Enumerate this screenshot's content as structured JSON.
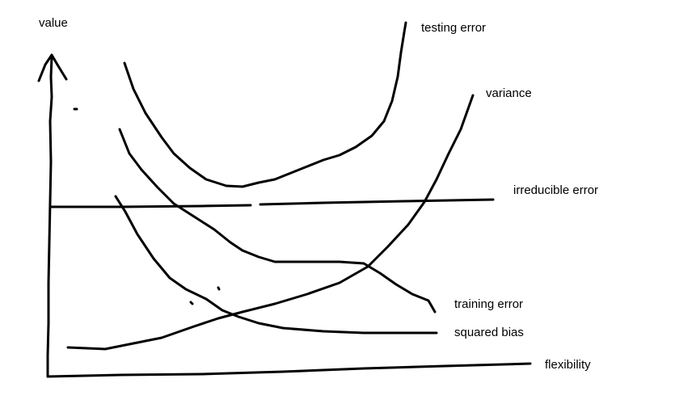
{
  "labels": {
    "y_axis": "value",
    "x_axis": "flexibility",
    "testing_error": "testing error",
    "variance": "variance",
    "irreducible_error": "irreducible error",
    "training_error": "training error",
    "squared_bias": "squared bias"
  },
  "colors": {
    "ink": "#000000",
    "background": "#ffffff"
  }
}
